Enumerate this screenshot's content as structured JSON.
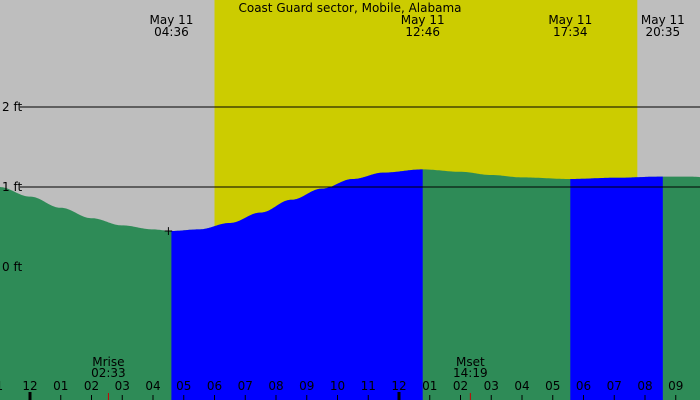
{
  "chart_data": {
    "type": "area",
    "title": "Coast Guard sector, Mobile, Alabama",
    "xlabel": "",
    "ylabel": "",
    "x_unit": "hour",
    "xlim": [
      -1.1,
      33.4
    ],
    "ylim": [
      -1.35,
      3.5
    ],
    "y_ticks": [
      {
        "value": 2,
        "label": "2 ft"
      },
      {
        "value": 1,
        "label": "1 ft"
      },
      {
        "value": 0,
        "label": "0 ft"
      }
    ],
    "x_ticks": [
      {
        "x": -1,
        "label": "1"
      },
      {
        "x": 0,
        "label": "12"
      },
      {
        "x": 1,
        "label": "01"
      },
      {
        "x": 2,
        "label": "02"
      },
      {
        "x": 3,
        "label": "03"
      },
      {
        "x": 4,
        "label": "04"
      },
      {
        "x": 5,
        "label": "05"
      },
      {
        "x": 6,
        "label": "06"
      },
      {
        "x": 7,
        "label": "07"
      },
      {
        "x": 8,
        "label": "08"
      },
      {
        "x": 9,
        "label": "09"
      },
      {
        "x": 10,
        "label": "10"
      },
      {
        "x": 11,
        "label": "11"
      },
      {
        "x": 12,
        "label": "12"
      },
      {
        "x": 13,
        "label": "01"
      },
      {
        "x": 14,
        "label": "02"
      },
      {
        "x": 15,
        "label": "03"
      },
      {
        "x": 16,
        "label": "04"
      },
      {
        "x": 17,
        "label": "05"
      },
      {
        "x": 18,
        "label": "06"
      },
      {
        "x": 19,
        "label": "07"
      },
      {
        "x": 20,
        "label": "08"
      },
      {
        "x": 21,
        "label": "09"
      }
    ],
    "daylight": [
      6.0,
      19.75
    ],
    "tide_extremes": [
      {
        "x": 4.6,
        "date": "May 11",
        "time": "04:36",
        "level": 0.45,
        "type": "low"
      },
      {
        "x": 12.77,
        "date": "May 11",
        "time": "12:46",
        "level": 1.22,
        "type": "high"
      },
      {
        "x": 17.57,
        "date": "May 11",
        "time": "17:34",
        "level": 1.1,
        "type": "low"
      },
      {
        "x": 20.58,
        "date": "May 11",
        "time": "20:35",
        "level": 1.13,
        "type": "high"
      }
    ],
    "curve": [
      {
        "x": -1.0,
        "y": 1.0
      },
      {
        "x": 0.0,
        "y": 0.88
      },
      {
        "x": 1.0,
        "y": 0.74
      },
      {
        "x": 2.0,
        "y": 0.61
      },
      {
        "x": 3.0,
        "y": 0.52
      },
      {
        "x": 4.0,
        "y": 0.47
      },
      {
        "x": 4.6,
        "y": 0.45
      },
      {
        "x": 5.5,
        "y": 0.47
      },
      {
        "x": 6.5,
        "y": 0.55
      },
      {
        "x": 7.5,
        "y": 0.68
      },
      {
        "x": 8.5,
        "y": 0.84
      },
      {
        "x": 9.5,
        "y": 0.98
      },
      {
        "x": 10.5,
        "y": 1.1
      },
      {
        "x": 11.5,
        "y": 1.18
      },
      {
        "x": 12.77,
        "y": 1.22
      },
      {
        "x": 14.0,
        "y": 1.19
      },
      {
        "x": 15.0,
        "y": 1.15
      },
      {
        "x": 16.0,
        "y": 1.12
      },
      {
        "x": 17.57,
        "y": 1.1
      },
      {
        "x": 19.0,
        "y": 1.115
      },
      {
        "x": 20.58,
        "y": 1.13
      },
      {
        "x": 21.5,
        "y": 1.13
      },
      {
        "x": 22.0,
        "y": 1.12
      }
    ],
    "highlight_bands": [
      [
        4.6,
        12.77
      ],
      [
        17.57,
        20.58
      ]
    ],
    "moon_events": [
      {
        "label": "Mrise",
        "time": "02:33",
        "x": 2.55
      },
      {
        "label": "Mset",
        "time": "14:19",
        "x": 14.32
      }
    ],
    "marker": {
      "x": 4.5,
      "y": 0.45,
      "symbol": "+"
    },
    "colors": {
      "background": "#bebebe",
      "daylight": "#cccc00",
      "water": "#2e8b57",
      "highlight": "#0000ff",
      "axis_line": "#000000",
      "moon_tick": "#cc0000"
    },
    "grid": false,
    "legend": "none"
  }
}
